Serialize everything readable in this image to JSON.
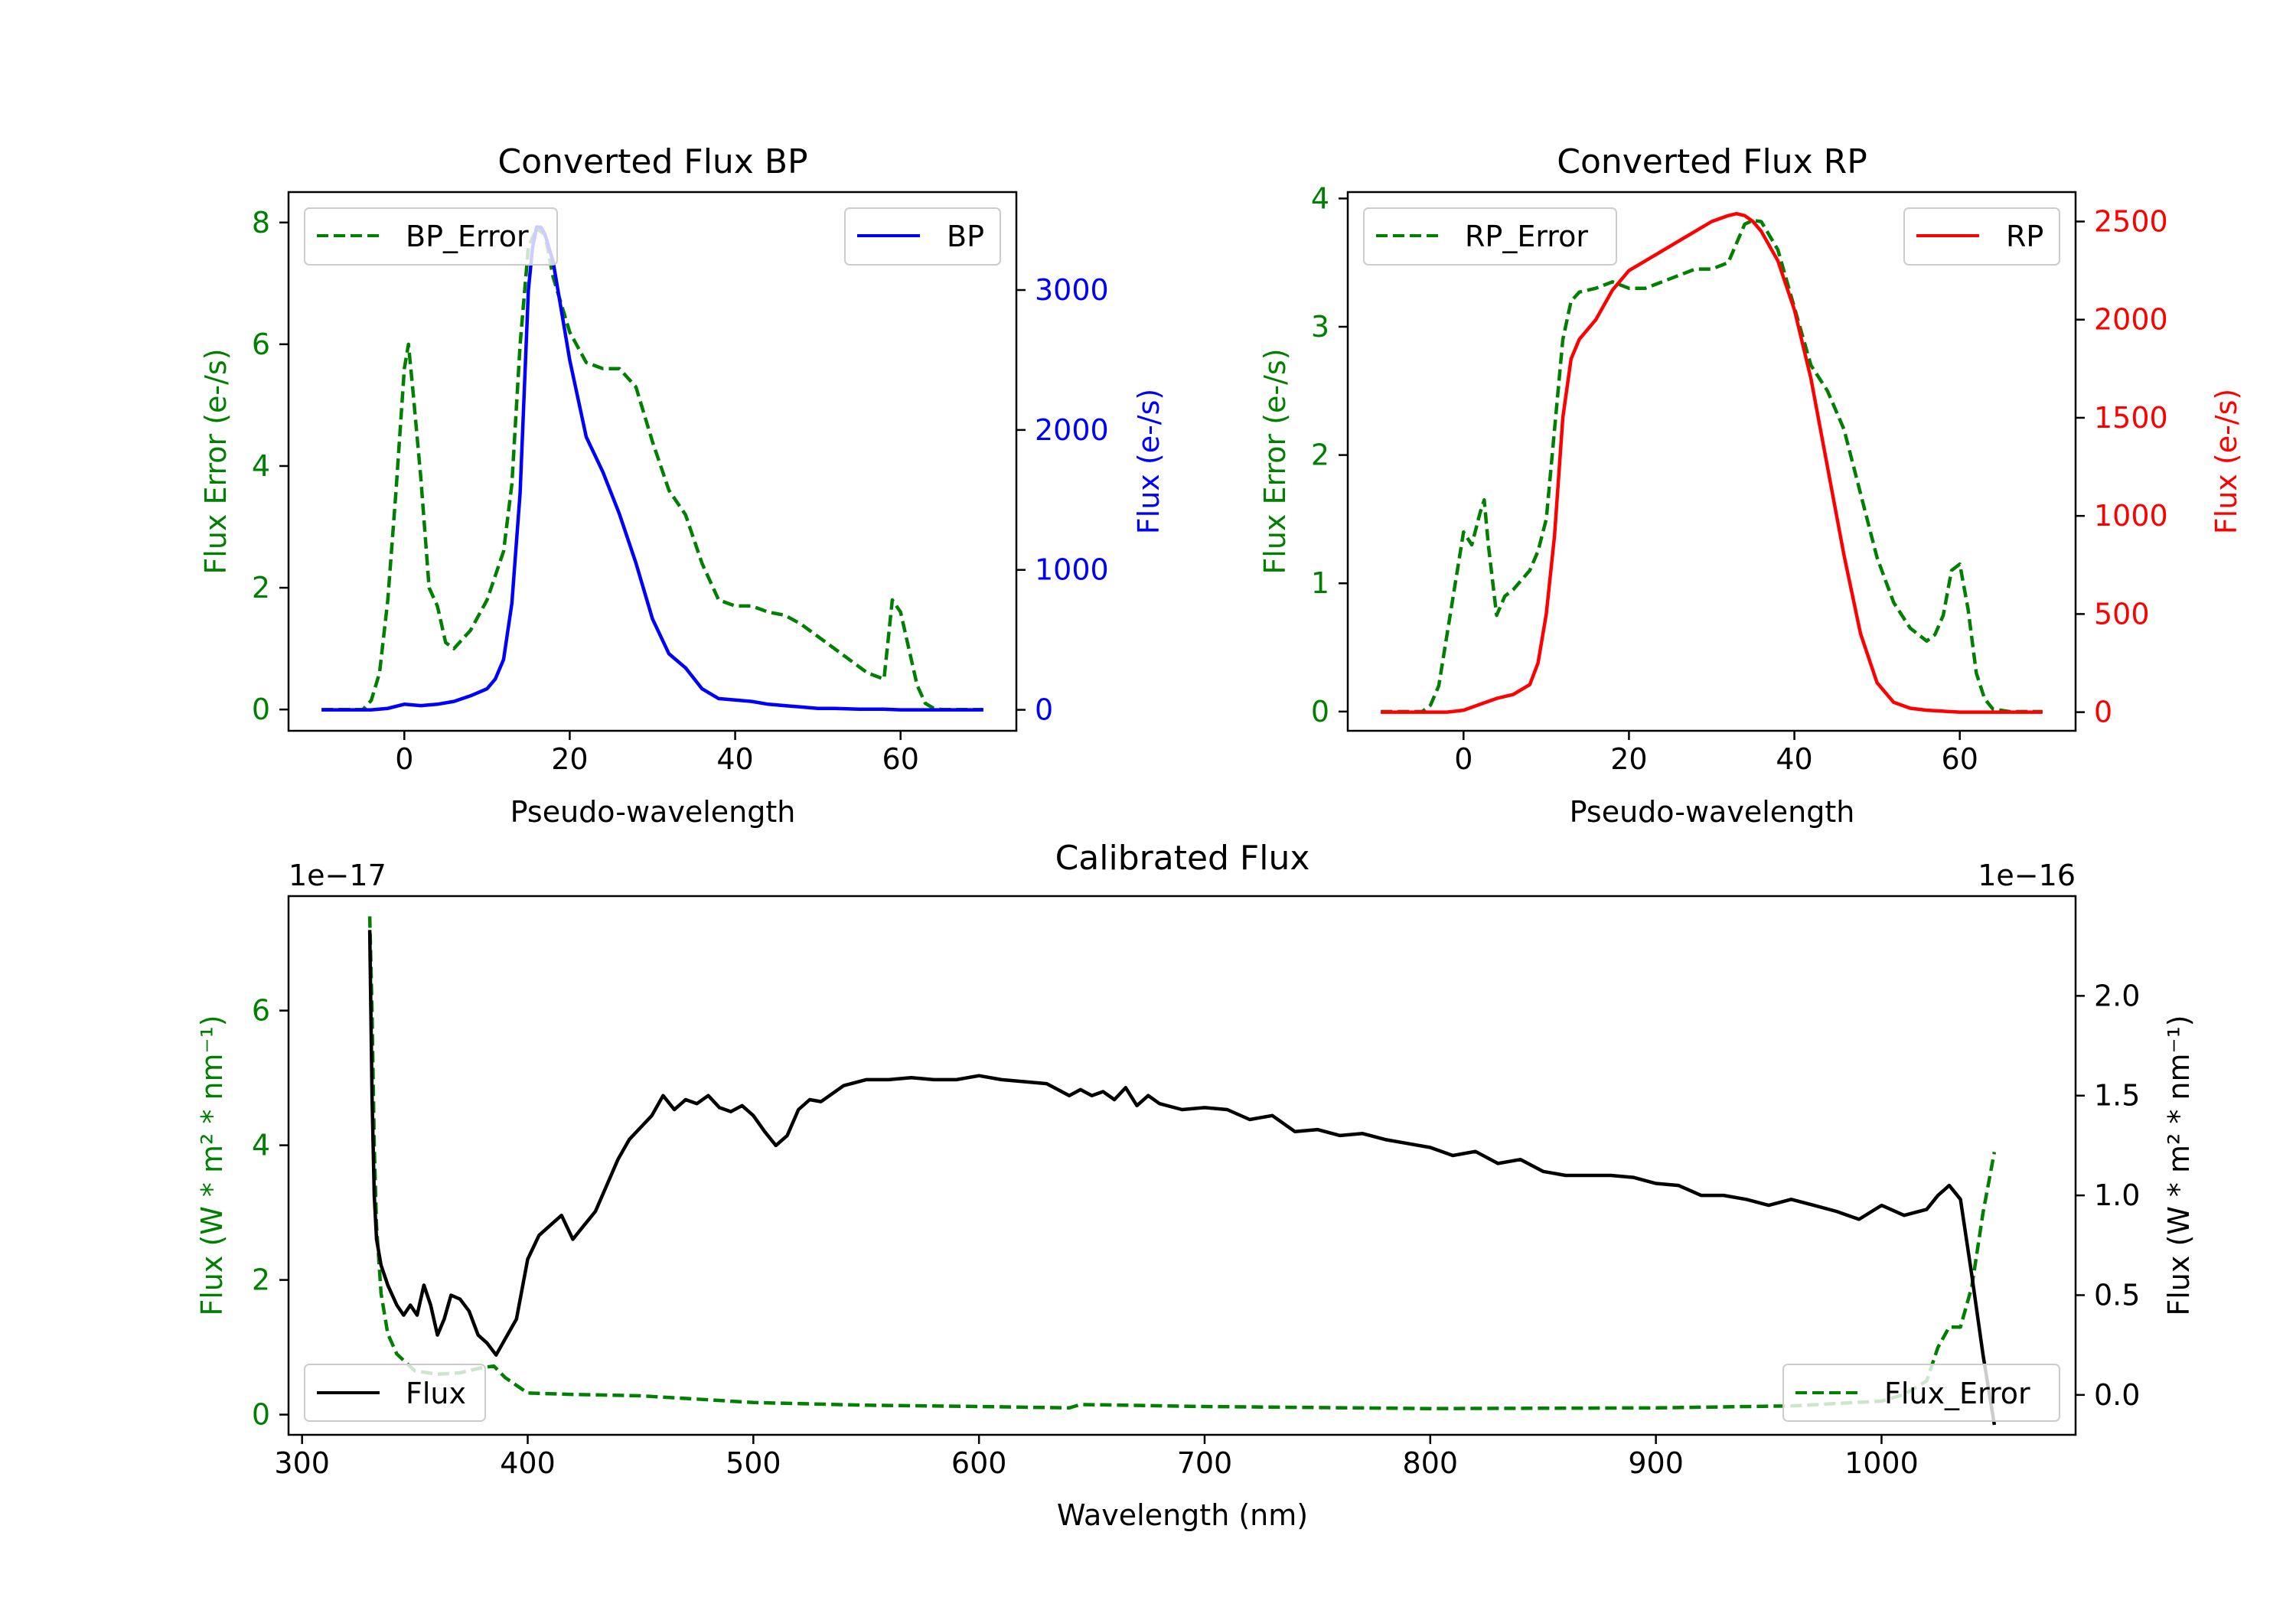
{
  "colors": {
    "green": "#008000",
    "blue": "#0000ff",
    "red": "#ff0000",
    "black": "#000000"
  },
  "chart_data": [
    {
      "type": "line",
      "title": "Converted Flux BP",
      "xlabel": "Pseudo-wavelength",
      "ylabel_left": "Flux Error (e-/s)",
      "ylabel_right": "Flux (e-/s)",
      "xlim": [
        -14,
        74
      ],
      "ylim_left": [
        -0.35,
        8.5
      ],
      "ylim_right": [
        -150,
        3700
      ],
      "xticks": [
        0,
        20,
        40,
        60
      ],
      "yticks_left": [
        0,
        2,
        4,
        6,
        8
      ],
      "yticks_right": [
        0,
        1000,
        2000,
        3000
      ],
      "legend_left": {
        "label": "BP_Error",
        "placement": "upper-left"
      },
      "legend_right": {
        "label": "BP",
        "placement": "upper-right"
      },
      "series": [
        {
          "name": "BP_Error",
          "axis": "left",
          "style": "dashed",
          "color": "green",
          "x": [
            -10,
            -5,
            -4,
            -3,
            -2,
            -1,
            0,
            0.5,
            1,
            2,
            3,
            4,
            5,
            6,
            8,
            10,
            12,
            13,
            14,
            15,
            16,
            17,
            18,
            20,
            22,
            24,
            26,
            28,
            30,
            32,
            34,
            36,
            38,
            40,
            42,
            44,
            46,
            48,
            50,
            52,
            54,
            56,
            58,
            59,
            60,
            61,
            62,
            63,
            64,
            65,
            66,
            68,
            70
          ],
          "y": [
            0,
            0,
            0.15,
            0.6,
            1.8,
            3.6,
            5.6,
            6.0,
            5.3,
            3.8,
            2.0,
            1.7,
            1.1,
            1.0,
            1.3,
            1.8,
            2.6,
            3.7,
            6.0,
            7.6,
            7.9,
            7.8,
            7.1,
            6.2,
            5.7,
            5.6,
            5.6,
            5.3,
            4.4,
            3.6,
            3.2,
            2.4,
            1.8,
            1.7,
            1.7,
            1.6,
            1.55,
            1.4,
            1.2,
            1.0,
            0.8,
            0.6,
            0.5,
            1.8,
            1.6,
            1.0,
            0.4,
            0.1,
            0.02,
            0,
            0,
            0,
            0
          ]
        },
        {
          "name": "BP",
          "axis": "right",
          "style": "solid",
          "color": "blue",
          "x": [
            -10,
            -4,
            -2,
            0,
            2,
            4,
            6,
            8,
            10,
            11,
            12,
            13,
            14,
            15,
            15.5,
            16,
            16.5,
            17,
            18,
            19,
            20,
            22,
            24,
            26,
            28,
            30,
            32,
            34,
            36,
            38,
            40,
            42,
            44,
            46,
            48,
            50,
            52,
            55,
            58,
            60,
            62,
            64,
            66,
            68,
            70
          ],
          "y": [
            0,
            0,
            10,
            40,
            30,
            40,
            60,
            100,
            150,
            220,
            360,
            760,
            1550,
            3000,
            3300,
            3450,
            3450,
            3400,
            3200,
            2850,
            2500,
            1950,
            1700,
            1400,
            1050,
            650,
            400,
            300,
            150,
            80,
            70,
            60,
            40,
            30,
            20,
            10,
            10,
            5,
            5,
            0,
            0,
            0,
            0,
            0,
            0
          ]
        }
      ]
    },
    {
      "type": "line",
      "title": "Converted Flux RP",
      "xlabel": "Pseudo-wavelength",
      "ylabel_left": "Flux Error (e-/s)",
      "ylabel_right": "Flux (e-/s)",
      "xlim": [
        -14,
        74
      ],
      "ylim_left": [
        -0.15,
        4.05
      ],
      "ylim_right": [
        -95,
        2650
      ],
      "xticks": [
        0,
        20,
        40,
        60
      ],
      "yticks_left": [
        0,
        1,
        2,
        3,
        4
      ],
      "yticks_right": [
        0,
        500,
        1000,
        1500,
        2000,
        2500
      ],
      "legend_left": {
        "label": "RP_Error",
        "placement": "upper-left"
      },
      "legend_right": {
        "label": "RP",
        "placement": "upper-right"
      },
      "series": [
        {
          "name": "RP_Error",
          "axis": "left",
          "style": "dashed",
          "color": "green",
          "x": [
            -10,
            -5,
            -4,
            -3,
            -2,
            -1,
            0,
            1,
            2,
            2.5,
            3,
            4,
            5,
            6,
            8,
            9,
            10,
            11,
            12,
            13,
            14,
            16,
            18,
            20,
            22,
            24,
            26,
            28,
            30,
            32,
            34,
            35,
            36,
            38,
            40,
            42,
            44,
            46,
            48,
            50,
            52,
            54,
            56,
            57,
            58,
            59,
            60,
            61,
            62,
            63,
            64,
            66,
            68,
            70
          ],
          "y": [
            0,
            0,
            0.05,
            0.2,
            0.6,
            1.0,
            1.4,
            1.3,
            1.55,
            1.65,
            1.3,
            0.75,
            0.9,
            0.95,
            1.1,
            1.25,
            1.5,
            2.2,
            2.9,
            3.2,
            3.27,
            3.3,
            3.35,
            3.3,
            3.3,
            3.35,
            3.4,
            3.45,
            3.45,
            3.5,
            3.8,
            3.83,
            3.82,
            3.6,
            3.15,
            2.7,
            2.5,
            2.2,
            1.7,
            1.2,
            0.85,
            0.65,
            0.55,
            0.6,
            0.75,
            1.1,
            1.15,
            0.8,
            0.3,
            0.1,
            0.02,
            0,
            0,
            0
          ]
        },
        {
          "name": "RP",
          "axis": "right",
          "style": "solid",
          "color": "red",
          "x": [
            -10,
            -4,
            -2,
            0,
            2,
            4,
            6,
            8,
            9,
            10,
            11,
            12,
            13,
            14,
            16,
            18,
            20,
            22,
            24,
            26,
            28,
            30,
            32,
            33,
            34,
            35,
            36,
            38,
            40,
            42,
            44,
            46,
            48,
            50,
            52,
            54,
            56,
            58,
            60,
            62,
            64,
            66,
            68,
            70
          ],
          "y": [
            0,
            0,
            0,
            10,
            40,
            70,
            90,
            140,
            250,
            500,
            900,
            1500,
            1800,
            1900,
            2000,
            2150,
            2250,
            2300,
            2350,
            2400,
            2450,
            2500,
            2530,
            2540,
            2530,
            2500,
            2450,
            2300,
            2050,
            1700,
            1250,
            800,
            400,
            150,
            50,
            20,
            10,
            5,
            0,
            0,
            0,
            0,
            0,
            0
          ]
        }
      ]
    },
    {
      "type": "line",
      "title": "Calibrated Flux",
      "xlabel": "Wavelength (nm)",
      "ylabel_left": "Flux (W * m² * nm⁻¹)",
      "ylabel_right": "Flux (W * m² * nm⁻¹)",
      "offset_left": "1e−17",
      "offset_right": "1e−16",
      "xlim": [
        294,
        1086
      ],
      "ylim_left": [
        -0.3,
        7.7
      ],
      "ylim_right": [
        -0.2,
        2.5
      ],
      "xticks": [
        300,
        400,
        500,
        600,
        700,
        800,
        900,
        1000
      ],
      "yticks_left": [
        0,
        2,
        4,
        6
      ],
      "yticks_right": [
        0.0,
        0.5,
        1.0,
        1.5,
        2.0
      ],
      "ytick_labels_right": [
        "0.0",
        "0.5",
        "1.0",
        "1.5",
        "2.0"
      ],
      "legend_left": {
        "label": "Flux",
        "placement": "lower-left"
      },
      "legend_right": {
        "label": "Flux_Error",
        "placement": "lower-right"
      },
      "series": [
        {
          "name": "Flux_Error",
          "axis": "left",
          "style": "dashed",
          "color": "green",
          "x": [
            330,
            331,
            332,
            333,
            335,
            338,
            342,
            350,
            360,
            370,
            380,
            385,
            390,
            400,
            420,
            450,
            480,
            500,
            550,
            600,
            640,
            645,
            700,
            800,
            900,
            960,
            1000,
            1010,
            1020,
            1025,
            1030,
            1035,
            1040,
            1045,
            1050
          ],
          "y": [
            7.4,
            6.0,
            4.0,
            2.8,
            1.8,
            1.2,
            0.9,
            0.65,
            0.6,
            0.62,
            0.7,
            0.72,
            0.55,
            0.32,
            0.3,
            0.28,
            0.22,
            0.18,
            0.14,
            0.12,
            0.1,
            0.15,
            0.12,
            0.09,
            0.1,
            0.13,
            0.2,
            0.3,
            0.5,
            1.0,
            1.3,
            1.3,
            1.9,
            3.0,
            3.9
          ]
        },
        {
          "name": "Flux",
          "axis": "right",
          "style": "solid",
          "color": "black",
          "x": [
            330,
            331,
            332,
            333,
            335,
            338,
            342,
            345,
            348,
            351,
            354,
            357,
            360,
            363,
            366,
            370,
            374,
            378,
            382,
            386,
            390,
            395,
            400,
            405,
            410,
            415,
            420,
            425,
            430,
            435,
            440,
            445,
            450,
            455,
            460,
            465,
            470,
            475,
            480,
            485,
            490,
            495,
            500,
            505,
            510,
            515,
            520,
            525,
            530,
            540,
            550,
            560,
            570,
            580,
            590,
            600,
            610,
            620,
            630,
            640,
            645,
            650,
            655,
            660,
            665,
            670,
            675,
            680,
            690,
            700,
            710,
            720,
            730,
            740,
            750,
            760,
            770,
            780,
            790,
            800,
            810,
            820,
            830,
            840,
            850,
            860,
            870,
            880,
            890,
            900,
            910,
            920,
            930,
            940,
            950,
            960,
            970,
            980,
            990,
            1000,
            1010,
            1020,
            1025,
            1030,
            1035,
            1040,
            1045,
            1050
          ],
          "y": [
            2.33,
            1.5,
            1.0,
            0.78,
            0.65,
            0.55,
            0.45,
            0.4,
            0.45,
            0.4,
            0.55,
            0.45,
            0.3,
            0.38,
            0.5,
            0.48,
            0.42,
            0.3,
            0.26,
            0.2,
            0.28,
            0.38,
            0.68,
            0.8,
            0.85,
            0.9,
            0.78,
            0.85,
            0.92,
            1.05,
            1.18,
            1.28,
            1.34,
            1.4,
            1.5,
            1.43,
            1.48,
            1.46,
            1.5,
            1.44,
            1.42,
            1.45,
            1.4,
            1.32,
            1.25,
            1.3,
            1.43,
            1.48,
            1.47,
            1.55,
            1.58,
            1.58,
            1.59,
            1.58,
            1.58,
            1.6,
            1.58,
            1.57,
            1.56,
            1.5,
            1.53,
            1.5,
            1.52,
            1.48,
            1.54,
            1.45,
            1.5,
            1.46,
            1.43,
            1.44,
            1.43,
            1.38,
            1.4,
            1.32,
            1.33,
            1.3,
            1.31,
            1.28,
            1.26,
            1.24,
            1.2,
            1.22,
            1.16,
            1.18,
            1.12,
            1.1,
            1.1,
            1.1,
            1.09,
            1.06,
            1.05,
            1.0,
            1.0,
            0.98,
            0.95,
            0.98,
            0.95,
            0.92,
            0.88,
            0.95,
            0.9,
            0.93,
            1.0,
            1.05,
            0.98,
            0.6,
            0.2,
            -0.15
          ]
        }
      ]
    }
  ]
}
